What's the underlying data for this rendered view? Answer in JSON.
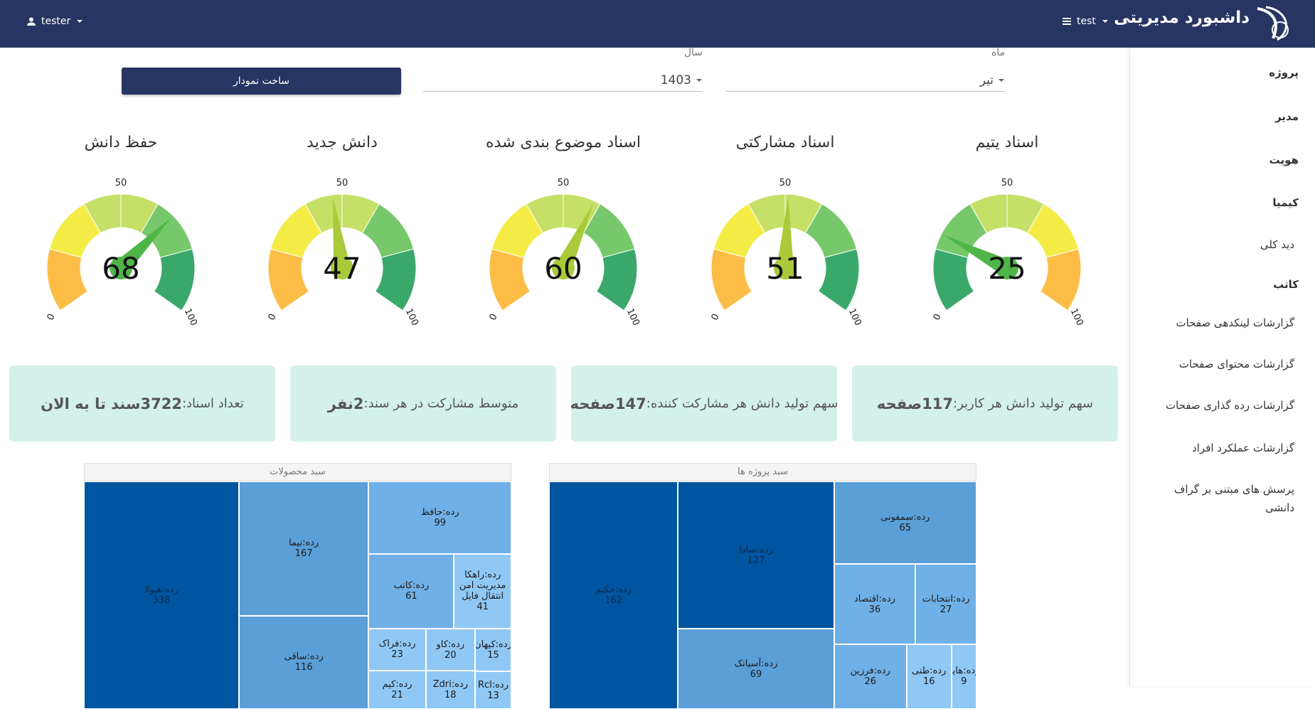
{
  "header": {
    "title": "داشبورد مدیریتی",
    "workspace": "test",
    "user": "tester"
  },
  "sidebar": [
    {
      "text": "پروژه",
      "heading": true
    },
    {
      "text": "مدیر",
      "heading": true
    },
    {
      "text": "هویت",
      "heading": true
    },
    {
      "text": "کیمیا",
      "heading": true
    },
    {
      "text": "دید کلی",
      "heading": false
    },
    {
      "text": "کاتب",
      "heading": true
    },
    {
      "text": "گزارشات لینکدهی صفحات",
      "heading": false
    },
    {
      "text": "گزارشات محتوای صفحات",
      "heading": false
    },
    {
      "text": "گزارشات رده گذاری صفحات",
      "heading": false
    },
    {
      "text": "گزارشات عملکرد افراد",
      "heading": false
    },
    {
      "text": "پرسش های مبتنی بر گراف دانشی",
      "heading": false
    }
  ],
  "filters": {
    "month": {
      "label": "ماه",
      "value": "تیر"
    },
    "year": {
      "label": "سال",
      "value": "1403"
    },
    "button": "ساخت نمودار"
  },
  "gauges": [
    {
      "title": "اسناد یتیم",
      "value": 25,
      "range": [
        0,
        100
      ],
      "ticks": [
        0,
        50,
        100
      ],
      "colors": [
        "#3aa86a",
        "#76c86a",
        "#c6df66",
        "#c6df66",
        "#f4ec45",
        "#fcbd46"
      ]
    },
    {
      "title": "اسناد مشارکتی",
      "value": 51,
      "range": [
        0,
        100
      ],
      "ticks": [
        0,
        50,
        100
      ],
      "colors": [
        "#fcbd46",
        "#f4ec45",
        "#c6df66",
        "#c6df66",
        "#76c86a",
        "#3aa86a"
      ]
    },
    {
      "title": "اسناد موضوع بندی شده",
      "value": 60,
      "range": [
        0,
        100
      ],
      "ticks": [
        0,
        50,
        100
      ],
      "colors": [
        "#fcbd46",
        "#f4ec45",
        "#c6df66",
        "#c6df66",
        "#76c86a",
        "#3aa86a"
      ]
    },
    {
      "title": "دانش جدید",
      "value": 47,
      "range": [
        0,
        100
      ],
      "ticks": [
        0,
        50,
        100
      ],
      "colors": [
        "#fcbd46",
        "#f4ec45",
        "#c6df66",
        "#c6df66",
        "#76c86a",
        "#3aa86a"
      ]
    },
    {
      "title": "حفظ دانش",
      "value": 68,
      "range": [
        0,
        100
      ],
      "ticks": [
        0,
        50,
        100
      ],
      "colors": [
        "#fcbd46",
        "#f4ec45",
        "#c6df66",
        "#c6df66",
        "#76c86a",
        "#3aa86a"
      ]
    }
  ],
  "cards": [
    {
      "label": "سهم تولید دانش هر کاربر:",
      "value": "117صفحه"
    },
    {
      "label": "سهم تولید دانش هر مشارکت کننده:",
      "value": "147صفحه"
    },
    {
      "label": "متوسط مشارکت در هر سند:",
      "value": "2نفر"
    },
    {
      "label": "تعداد اسناد:",
      "value": "3722سند تا به الان"
    }
  ],
  "treemaps": [
    {
      "title": "سبد پروژه ها",
      "cells": [
        {
          "label": "رده:حکیم",
          "value": 162
        },
        {
          "label": "رده:سادا",
          "value": 127
        },
        {
          "label": "رده:آسیاتک",
          "value": 69
        },
        {
          "label": "رده:سمفونی",
          "value": 65
        },
        {
          "label": "رده:اقتصاد",
          "value": 36
        },
        {
          "label": "رده:انتخابات",
          "value": 27
        },
        {
          "label": "رده:فرزین",
          "value": 26
        },
        {
          "label": "رده:طنی",
          "value": 16
        },
        {
          "label": "رده:هایو",
          "value": 9
        }
      ]
    },
    {
      "title": "سبد محصولات",
      "cells": [
        {
          "label": "رده:هیولا",
          "value": 338
        },
        {
          "label": "رده:نیما",
          "value": 167
        },
        {
          "label": "رده:ساقی",
          "value": 116
        },
        {
          "label": "رده:حافظ",
          "value": 99
        },
        {
          "label": "رده:کاتب",
          "value": 61
        },
        {
          "label": "رده:راهکا مدیریت امن انتقال فایل",
          "value": 41
        },
        {
          "label": "رده:فراک",
          "value": 23
        },
        {
          "label": "رده:کیم",
          "value": 21
        },
        {
          "label": "رده:کاو",
          "value": 20
        },
        {
          "label": "رده:Zdri",
          "value": 18
        },
        {
          "label": "رده:کیهان",
          "value": 15
        },
        {
          "label": "رده:Rcl",
          "value": 13
        }
      ]
    }
  ]
}
